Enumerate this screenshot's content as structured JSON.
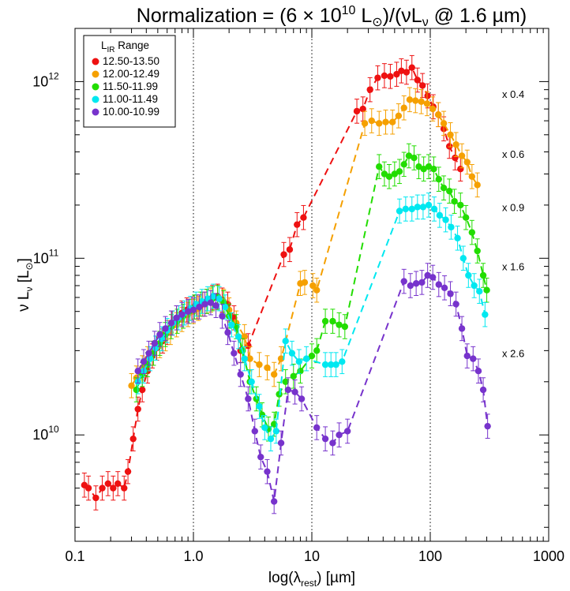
{
  "chart_data": {
    "type": "line",
    "title": "Normalization = (6 × 10¹⁰ L⊙)/(νL_ν @ 1.6 µm)",
    "title_parts": {
      "pre": "Normalization = (6 × 10",
      "exp": "10",
      "mid": " L",
      "sun": "⊙",
      "post": ")/(νL",
      "nu": "ν",
      "tail": " @ 1.6 µm)"
    },
    "xlabel": "log(λ_rest) [µm]",
    "xlabel_parts": {
      "pre": "log(λ",
      "sub": "rest",
      "post": ") [µm]"
    },
    "ylabel": "ν L_ν [L⊙]",
    "ylabel_parts": {
      "pre": "ν L",
      "sub": "ν",
      "mid": " [L",
      "sun": "⊙",
      "post": "]"
    },
    "xscale": "log",
    "yscale": "log",
    "xlim": [
      0.1,
      1000
    ],
    "ylim": [
      2500000000.0,
      2000000000000.0
    ],
    "xticks": [
      {
        "value": 0.1,
        "label": "0.1"
      },
      {
        "value": 1,
        "label": "1.0"
      },
      {
        "value": 10,
        "label": "10"
      },
      {
        "value": 100,
        "label": "100"
      },
      {
        "value": 1000,
        "label": "1000"
      }
    ],
    "yticks": [
      {
        "value": 10000000000.0,
        "base": "10",
        "exp": "10"
      },
      {
        "value": 100000000000.0,
        "base": "10",
        "exp": "11"
      },
      {
        "value": 1000000000000.0,
        "base": "10",
        "exp": "12"
      }
    ],
    "vlines": [
      1,
      10,
      100
    ],
    "legend": {
      "title_base": "L",
      "title_sub": "IR",
      "title_rest": " Range",
      "position": "top-left"
    },
    "multipliers": [
      {
        "label": "x 0.4",
        "y": 850000000000.0
      },
      {
        "label": "x 0.6",
        "y": 390000000000.0
      },
      {
        "label": "x 0.9",
        "y": 195000000000.0
      },
      {
        "label": "x 1.6",
        "y": 90000000000.0
      },
      {
        "label": "x 2.6",
        "y": 29000000000.0
      }
    ],
    "series": [
      {
        "name": "12.50-13.50",
        "color": "#ee1111",
        "x": [
          0.12,
          0.13,
          0.15,
          0.17,
          0.19,
          0.21,
          0.23,
          0.26,
          0.28,
          0.31,
          0.34,
          0.37,
          0.41,
          0.45,
          0.49,
          0.55,
          0.6,
          0.66,
          0.72,
          0.8,
          0.88,
          0.97,
          1.07,
          1.2,
          1.3,
          1.45,
          1.6,
          1.75,
          1.95,
          2.2,
          2.5,
          2.9,
          5.8,
          6.5,
          7.5,
          8.5,
          24,
          27,
          31,
          36,
          41,
          46,
          52,
          57,
          63,
          70,
          78,
          86,
          95,
          106,
          117,
          130,
          145,
          162,
          180
        ],
        "y": [
          5200000000.0,
          5000000000.0,
          4400000000.0,
          5000000000.0,
          5300000000.0,
          5000000000.0,
          5300000000.0,
          5000000000.0,
          6200000000.0,
          9500000000.0,
          14000000000.0,
          18000000000.0,
          23000000000.0,
          28000000000.0,
          31000000000.0,
          34000000000.0,
          38000000000.0,
          43000000000.0,
          46000000000.0,
          49000000000.0,
          51000000000.0,
          52000000000.0,
          53000000000.0,
          55000000000.0,
          57000000000.0,
          60000000000.0,
          61000000000.0,
          58000000000.0,
          55000000000.0,
          46000000000.0,
          30000000000.0,
          32000000000.0,
          105000000000.0,
          112000000000.0,
          155000000000.0,
          170000000000.0,
          680000000000.0,
          700000000000.0,
          900000000000.0,
          1050000000000.0,
          1080000000000.0,
          1070000000000.0,
          1100000000000.0,
          1150000000000.0,
          1130000000000.0,
          1200000000000.0,
          1020000000000.0,
          950000000000.0,
          830000000000.0,
          720000000000.0,
          650000000000.0,
          540000000000.0,
          430000000000.0,
          370000000000.0,
          320000000000.0
        ]
      },
      {
        "name": "12.00-12.49",
        "color": "#f5a000",
        "x": [
          0.3,
          0.33,
          0.37,
          0.41,
          0.46,
          0.52,
          0.58,
          0.64,
          0.72,
          0.8,
          0.9,
          1.0,
          1.1,
          1.25,
          1.4,
          1.6,
          1.8,
          2.0,
          2.3,
          2.7,
          3.0,
          3.6,
          4.2,
          4.8,
          5.5,
          8.0,
          8.7,
          10.2,
          11.0,
          28,
          32,
          37,
          42,
          48,
          54,
          60,
          67,
          75,
          84,
          94,
          105,
          117,
          130,
          148,
          165,
          185,
          205,
          225,
          250
        ],
        "y": [
          19000000000.0,
          21000000000.0,
          24000000000.0,
          27000000000.0,
          29000000000.0,
          32000000000.0,
          35000000000.0,
          38000000000.0,
          42000000000.0,
          45000000000.0,
          48000000000.0,
          50000000000.0,
          52000000000.0,
          55000000000.0,
          58000000000.0,
          60000000000.0,
          57000000000.0,
          51000000000.0,
          43000000000.0,
          36000000000.0,
          27000000000.0,
          25000000000.0,
          24000000000.0,
          22000000000.0,
          27000000000.0,
          72000000000.0,
          73000000000.0,
          70000000000.0,
          66000000000.0,
          580000000000.0,
          600000000000.0,
          580000000000.0,
          590000000000.0,
          590000000000.0,
          640000000000.0,
          710000000000.0,
          790000000000.0,
          780000000000.0,
          770000000000.0,
          750000000000.0,
          700000000000.0,
          650000000000.0,
          580000000000.0,
          500000000000.0,
          440000000000.0,
          380000000000.0,
          350000000000.0,
          290000000000.0,
          260000000000.0
        ]
      },
      {
        "name": "11.50-11.99",
        "color": "#22dd00",
        "x": [
          0.33,
          0.37,
          0.41,
          0.46,
          0.52,
          0.58,
          0.65,
          0.73,
          0.82,
          0.92,
          1.02,
          1.15,
          1.3,
          1.45,
          1.6,
          1.8,
          2.0,
          2.3,
          2.6,
          3.0,
          3.4,
          3.8,
          4.3,
          4.8,
          5.3,
          6.0,
          7.0,
          8.0,
          10,
          11,
          13,
          15,
          17,
          19,
          37,
          41,
          45,
          50,
          55,
          60,
          66,
          73,
          80,
          88,
          97,
          107,
          118,
          130,
          145,
          160,
          180,
          200,
          225,
          250,
          280,
          300
        ],
        "y": [
          18000000000.0,
          22000000000.0,
          25000000000.0,
          29000000000.0,
          33000000000.0,
          37000000000.0,
          41000000000.0,
          44000000000.0,
          47000000000.0,
          50000000000.0,
          53000000000.0,
          55000000000.0,
          57000000000.0,
          59000000000.0,
          60000000000.0,
          56000000000.0,
          47000000000.0,
          41000000000.0,
          30000000000.0,
          20000000000.0,
          16000000000.0,
          13000000000.0,
          10800000000.0,
          11500000000.0,
          17000000000.0,
          20000000000.0,
          21500000000.0,
          23000000000.0,
          28000000000.0,
          30000000000.0,
          44000000000.0,
          44000000000.0,
          42000000000.0,
          41000000000.0,
          330000000000.0,
          300000000000.0,
          290000000000.0,
          300000000000.0,
          310000000000.0,
          340000000000.0,
          380000000000.0,
          370000000000.0,
          330000000000.0,
          320000000000.0,
          330000000000.0,
          320000000000.0,
          280000000000.0,
          250000000000.0,
          240000000000.0,
          210000000000.0,
          200000000000.0,
          170000000000.0,
          140000000000.0,
          110000000000.0,
          80000000000.0,
          66000000000.0
        ]
      },
      {
        "name": "11.00-11.49",
        "color": "#00e8f0",
        "x": [
          0.34,
          0.38,
          0.43,
          0.48,
          0.54,
          0.6,
          0.67,
          0.75,
          0.84,
          0.94,
          1.05,
          1.18,
          1.32,
          1.47,
          1.65,
          1.85,
          2.1,
          2.4,
          2.7,
          3.1,
          3.6,
          4.0,
          4.5,
          5.0,
          6.0,
          6.8,
          7.8,
          9,
          13,
          14.5,
          16,
          18,
          55,
          62,
          70,
          78,
          87,
          97,
          108,
          120,
          135,
          150,
          170,
          190,
          210,
          235,
          260,
          290
        ],
        "y": [
          20000000000.0,
          23000000000.0,
          27000000000.0,
          31000000000.0,
          35000000000.0,
          39000000000.0,
          43000000000.0,
          46000000000.0,
          49000000000.0,
          52000000000.0,
          55000000000.0,
          57000000000.0,
          59000000000.0,
          61000000000.0,
          59000000000.0,
          53000000000.0,
          42000000000.0,
          36000000000.0,
          27000000000.0,
          20000000000.0,
          14500000000.0,
          11000000000.0,
          9500000000.0,
          10500000000.0,
          34000000000.0,
          29000000000.0,
          26000000000.0,
          27000000000.0,
          25000000000.0,
          25000000000.0,
          25000000000.0,
          26000000000.0,
          185000000000.0,
          190000000000.0,
          190000000000.0,
          195000000000.0,
          195000000000.0,
          200000000000.0,
          190000000000.0,
          175000000000.0,
          165000000000.0,
          150000000000.0,
          130000000000.0,
          100000000000.0,
          80000000000.0,
          70000000000.0,
          65000000000.0,
          48000000000.0
        ]
      },
      {
        "name": "10.00-10.99",
        "color": "#7733cc",
        "x": [
          0.34,
          0.38,
          0.42,
          0.47,
          0.52,
          0.58,
          0.65,
          0.72,
          0.8,
          0.9,
          1.0,
          1.12,
          1.25,
          1.4,
          1.55,
          1.75,
          1.95,
          2.2,
          2.5,
          2.9,
          3.3,
          3.7,
          4.2,
          4.8,
          5.5,
          6.3,
          7.2,
          8.2,
          11,
          13,
          15,
          17,
          20,
          60,
          68,
          76,
          85,
          95,
          105,
          118,
          132,
          148,
          165,
          185,
          205,
          230,
          255,
          280,
          305
        ],
        "y": [
          23000000000.0,
          26000000000.0,
          29000000000.0,
          33000000000.0,
          37000000000.0,
          40000000000.0,
          43000000000.0,
          46000000000.0,
          48000000000.0,
          50000000000.0,
          51000000000.0,
          53000000000.0,
          55000000000.0,
          56000000000.0,
          54000000000.0,
          47000000000.0,
          38000000000.0,
          29000000000.0,
          22000000000.0,
          16000000000.0,
          10500000000.0,
          7500000000.0,
          6200000000.0,
          4200000000.0,
          9000000000.0,
          18000000000.0,
          17500000000.0,
          16000000000.0,
          11000000000.0,
          9500000000.0,
          9000000000.0,
          10000000000.0,
          10500000000.0,
          74000000000.0,
          70000000000.0,
          72000000000.0,
          73000000000.0,
          80000000000.0,
          78000000000.0,
          71000000000.0,
          68000000000.0,
          63000000000.0,
          55000000000.0,
          40000000000.0,
          28000000000.0,
          27000000000.0,
          23000000000.0,
          18000000000.0,
          11200000000.0
        ]
      }
    ]
  }
}
